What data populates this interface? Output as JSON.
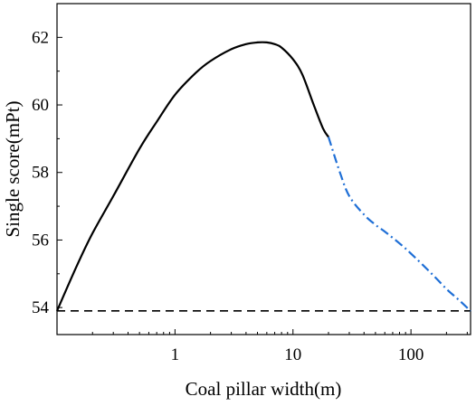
{
  "chart_data": {
    "type": "line",
    "xlabel": "Coal pillar width(m)",
    "ylabel": "Single score(mPt)",
    "x_scale": "log",
    "xlim": [
      0.1,
      320
    ],
    "ylim": [
      53.2,
      63
    ],
    "x_ticks": [
      1,
      10,
      100
    ],
    "x_tick_labels": [
      "1",
      "10",
      "100"
    ],
    "y_ticks": [
      54,
      56,
      58,
      60,
      62
    ],
    "y_tick_labels": [
      "54",
      "56",
      "58",
      "60",
      "62"
    ],
    "grid": false,
    "legend": "none",
    "series": [
      {
        "style": "solid",
        "color": "#000000",
        "x": [
          0.1,
          0.15,
          0.2,
          0.3,
          0.5,
          0.7,
          1.0,
          1.5,
          2.0,
          3.0,
          4.0,
          5.0,
          6.0,
          7.0,
          8.0,
          10.0,
          12.0,
          15.0,
          18.0,
          20.0
        ],
        "y": [
          53.9,
          55.3,
          56.2,
          57.3,
          58.7,
          59.5,
          60.3,
          60.95,
          61.3,
          61.65,
          61.8,
          61.85,
          61.85,
          61.8,
          61.7,
          61.35,
          60.9,
          60.0,
          59.3,
          59.05
        ]
      },
      {
        "style": "dash-dot",
        "color": "#1f6fd6",
        "x": [
          20,
          25,
          30,
          40,
          50,
          60,
          80,
          100,
          150,
          200,
          250,
          320
        ],
        "y": [
          59.05,
          58.0,
          57.3,
          56.75,
          56.45,
          56.25,
          55.9,
          55.6,
          55.0,
          54.55,
          54.25,
          53.9
        ]
      }
    ],
    "reference_lines": [
      {
        "orientation": "horizontal",
        "y": 53.9,
        "style": "dashed",
        "color": "#000000"
      }
    ]
  }
}
